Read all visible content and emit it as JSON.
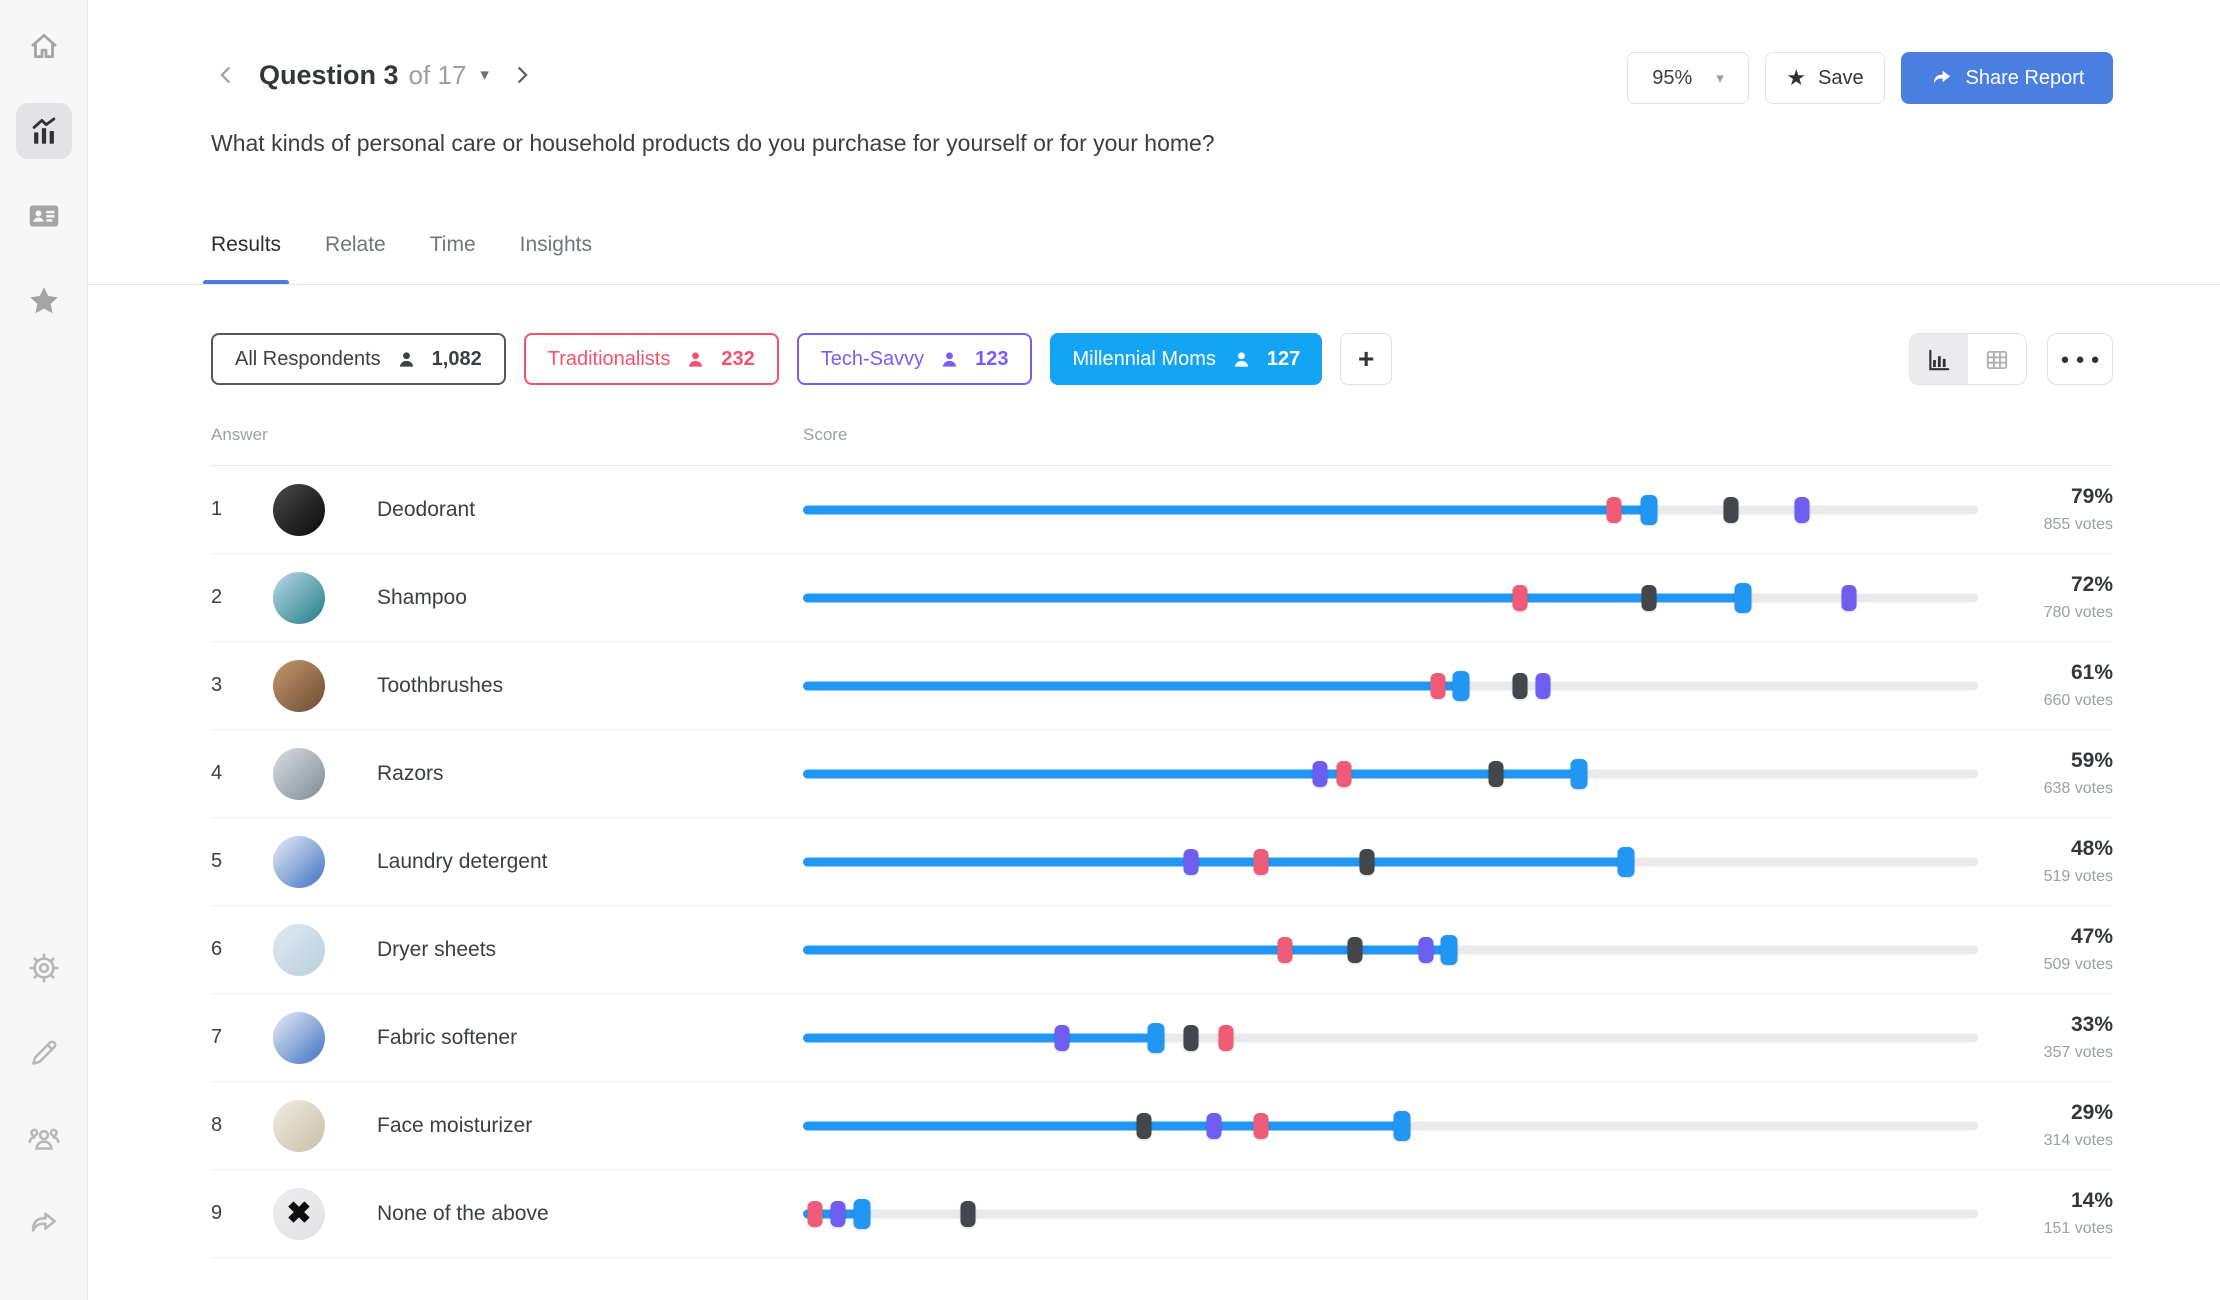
{
  "sidebar": {
    "items": [
      {
        "name": "home",
        "active": false
      },
      {
        "name": "analytics",
        "active": true
      },
      {
        "name": "contacts",
        "active": false
      },
      {
        "name": "favorites",
        "active": false
      }
    ],
    "bottom_items": [
      {
        "name": "settings"
      },
      {
        "name": "edit"
      },
      {
        "name": "team"
      },
      {
        "name": "share"
      }
    ]
  },
  "header": {
    "question_label": "Question 3",
    "question_of": "of 17",
    "caret": "▾",
    "zoom_value": "95%",
    "zoom_caret": "▾",
    "save_label": "Save",
    "save_star": "★",
    "share_label": "Share Report"
  },
  "question": {
    "text": "What kinds of personal care or household products do you purchase for yourself or for your home?"
  },
  "tabs": [
    {
      "label": "Results",
      "active": true
    },
    {
      "label": "Relate",
      "active": false
    },
    {
      "label": "Time",
      "active": false
    },
    {
      "label": "Insights",
      "active": false
    }
  ],
  "segments": [
    {
      "label": "All Respondents",
      "count": "1,082",
      "color": "#3c4043",
      "style": "outline-dark"
    },
    {
      "label": "Traditionalists",
      "count": "232",
      "color": "#f2536d",
      "style": "outline-red"
    },
    {
      "label": "Tech-Savvy",
      "count": "123",
      "color": "#7a5cf6",
      "style": "outline-purple"
    },
    {
      "label": "Millennial Moms",
      "count": "127",
      "color": "#14a4f4",
      "style": "filled-blue"
    }
  ],
  "add_segment_label": "+",
  "view_controls": {
    "more_label": "●●●"
  },
  "table": {
    "answer_header": "Answer",
    "score_header": "Score"
  },
  "marker_colors": {
    "all_respondents": "#43464a",
    "traditionalists": "#ee5c77",
    "tech_savvy": "#6e5ef0",
    "millennial_moms": "#2196f3"
  },
  "results": {
    "rows": [
      {
        "rank": "1",
        "label": "Deodorant",
        "percent": "79%",
        "votes": "855 votes",
        "markers": {
          "all_respondents": 79,
          "traditionalists": 69,
          "tech_savvy": 85,
          "millennial_moms": 72
        },
        "avatar": {
          "colors": [
            "#4a4a4a",
            "#0a0a0a"
          ],
          "glyph": ""
        }
      },
      {
        "rank": "2",
        "label": "Shampoo",
        "percent": "72%",
        "votes": "780 votes",
        "markers": {
          "all_respondents": 72,
          "traditionalists": 61,
          "tech_savvy": 89,
          "millennial_moms": 80
        },
        "avatar": {
          "colors": [
            "#bcd9ea",
            "#1f7d84"
          ],
          "glyph": ""
        }
      },
      {
        "rank": "3",
        "label": "Toothbrushes",
        "percent": "61%",
        "votes": "660 votes",
        "markers": {
          "all_respondents": 61,
          "traditionalists": 54,
          "tech_savvy": 63,
          "millennial_moms": 56
        },
        "avatar": {
          "colors": [
            "#c29a6b",
            "#6e4a33"
          ],
          "glyph": ""
        }
      },
      {
        "rank": "4",
        "label": "Razors",
        "percent": "59%",
        "votes": "638 votes",
        "markers": {
          "all_respondents": 59,
          "traditionalists": 46,
          "tech_savvy": 44,
          "millennial_moms": 66
        },
        "avatar": {
          "colors": [
            "#d8dde2",
            "#7e8b96"
          ],
          "glyph": ""
        }
      },
      {
        "rank": "5",
        "label": "Laundry detergent",
        "percent": "48%",
        "votes": "519 votes",
        "markers": {
          "all_respondents": 48,
          "traditionalists": 39,
          "tech_savvy": 33,
          "millennial_moms": 70
        },
        "avatar": {
          "colors": [
            "#e8eef5",
            "#3f6fc4"
          ],
          "glyph": ""
        }
      },
      {
        "rank": "6",
        "label": "Dryer sheets",
        "percent": "47%",
        "votes": "509 votes",
        "markers": {
          "all_respondents": 47,
          "traditionalists": 41,
          "tech_savvy": 53,
          "millennial_moms": 55
        },
        "avatar": {
          "colors": [
            "#dfeaf2",
            "#b8cede"
          ],
          "glyph": ""
        }
      },
      {
        "rank": "7",
        "label": "Fabric softener",
        "percent": "33%",
        "votes": "357 votes",
        "markers": {
          "all_respondents": 33,
          "traditionalists": 36,
          "tech_savvy": 22,
          "millennial_moms": 30
        },
        "avatar": {
          "colors": [
            "#e8eef5",
            "#3f6fc4"
          ],
          "glyph": ""
        }
      },
      {
        "rank": "8",
        "label": "Face moisturizer",
        "percent": "29%",
        "votes": "314 votes",
        "markers": {
          "all_respondents": 29,
          "traditionalists": 39,
          "tech_savvy": 35,
          "millennial_moms": 51
        },
        "avatar": {
          "colors": [
            "#f1ece2",
            "#cabfa6"
          ],
          "glyph": ""
        }
      },
      {
        "rank": "9",
        "label": "None of the above",
        "percent": "14%",
        "votes": "151 votes",
        "markers": {
          "all_respondents": 14,
          "traditionalists": 1,
          "tech_savvy": 3,
          "millennial_moms": 5
        },
        "avatar": {
          "colors": [
            "#ededef",
            "#e2e2e4"
          ],
          "glyph": "✖"
        }
      }
    ]
  }
}
